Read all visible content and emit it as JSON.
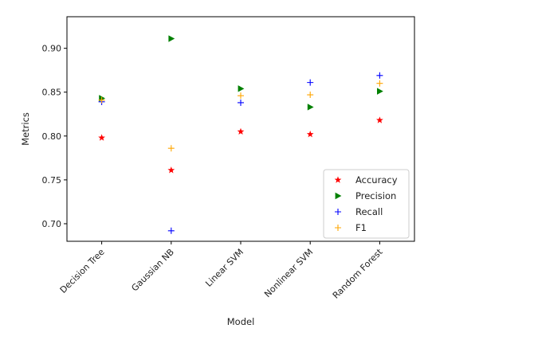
{
  "chart_data": {
    "type": "scatter",
    "title": "",
    "xlabel": "Model",
    "ylabel": "Metrics",
    "categories": [
      "Decision Tree",
      "Gaussian NB",
      "Linear SVM",
      "Nonlinear SVM",
      "Random Forest"
    ],
    "ylim": [
      0.68,
      0.936
    ],
    "yticks": [
      "0.70",
      "0.75",
      "0.80",
      "0.85",
      "0.90"
    ],
    "grid": false,
    "legend_position": "lower-right",
    "series": [
      {
        "name": "Accuracy",
        "marker": "star",
        "color": "#ff0000",
        "values": [
          0.798,
          0.761,
          0.805,
          0.802,
          0.818
        ]
      },
      {
        "name": "Precision",
        "marker": "triangle-right",
        "color": "#008000",
        "values": [
          0.843,
          0.911,
          0.854,
          0.833,
          0.851
        ]
      },
      {
        "name": "Recall",
        "marker": "plus",
        "color": "#0000ff",
        "values": [
          0.839,
          0.692,
          0.838,
          0.861,
          0.869
        ]
      },
      {
        "name": "F1",
        "marker": "plus",
        "color": "#ffa500",
        "values": [
          0.841,
          0.786,
          0.846,
          0.847,
          0.86
        ]
      }
    ]
  }
}
